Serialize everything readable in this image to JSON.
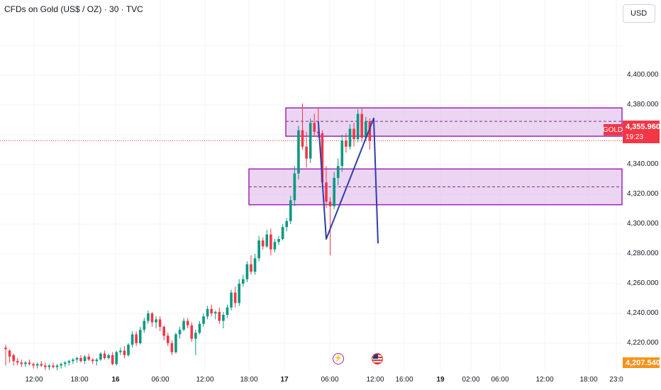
{
  "header": {
    "title": "CFDs on Gold (US$ / OZ) · 30 · TVC",
    "currency": "USD"
  },
  "price_axis": {
    "ticks": [
      "4,400.000",
      "4,380.000",
      "4,360.000",
      "4,340.000",
      "4,320.000",
      "4,300.000",
      "4,280.000",
      "4,260.000",
      "4,240.000",
      "4,220.000"
    ]
  },
  "time_axis": {
    "ticks": [
      {
        "label": "12:00",
        "bold": false
      },
      {
        "label": "18:00",
        "bold": false
      },
      {
        "label": "16",
        "bold": true
      },
      {
        "label": "06:00",
        "bold": false
      },
      {
        "label": "12:00",
        "bold": false
      },
      {
        "label": "18:00",
        "bold": false
      },
      {
        "label": "17",
        "bold": true
      },
      {
        "label": "06:00",
        "bold": false
      },
      {
        "label": "12:00",
        "bold": false
      },
      {
        "label": "16:00",
        "bold": false
      },
      {
        "label": "19",
        "bold": true
      },
      {
        "label": "02:00",
        "bold": false
      },
      {
        "label": "06:00",
        "bold": false
      },
      {
        "label": "12:00",
        "bold": false
      },
      {
        "label": "18:00",
        "bold": false
      },
      {
        "label": "23:0",
        "bold": false
      }
    ]
  },
  "symbol_tag": "GOLD",
  "current_price": "4,355.960",
  "countdown": "19:23",
  "last_price_tag": "4,207.540",
  "events": {
    "bolt": "bolt-icon",
    "flag": "us-flag-icon"
  },
  "colors": {
    "up": "#089981",
    "down": "#f23645",
    "zone_fill": "#e6c6ef",
    "zone_border": "#9c27b0",
    "pattern_line": "#2f3ea8",
    "price_line": "#f23645",
    "last_tag": "#f7931a"
  },
  "chart_data": {
    "type": "candlestick",
    "y_range": [
      4205,
      4425
    ],
    "candles": [
      [
        4217,
        4219,
        4205,
        4216
      ],
      [
        4215,
        4216,
        4207,
        4211
      ],
      [
        4212,
        4213,
        4205,
        4208
      ],
      [
        4208,
        4210,
        4205,
        4207
      ],
      [
        4207,
        4209,
        4204,
        4206
      ],
      [
        4206,
        4208,
        4204,
        4207
      ],
      [
        4207,
        4209,
        4205,
        4206
      ],
      [
        4206,
        4207,
        4203,
        4205
      ],
      [
        4205,
        4207,
        4203,
        4206
      ],
      [
        4206,
        4208,
        4204,
        4205
      ],
      [
        4205,
        4207,
        4202,
        4204
      ],
      [
        4204,
        4206,
        4202,
        4205
      ],
      [
        4205,
        4207,
        4203,
        4204
      ],
      [
        4204,
        4206,
        4202,
        4205
      ],
      [
        4205,
        4207,
        4203,
        4206
      ],
      [
        4206,
        4208,
        4204,
        4207
      ],
      [
        4207,
        4209,
        4205,
        4208
      ],
      [
        4208,
        4210,
        4206,
        4209
      ],
      [
        4209,
        4211,
        4207,
        4210
      ],
      [
        4210,
        4212,
        4207,
        4208
      ],
      [
        4208,
        4212,
        4206,
        4211
      ],
      [
        4211,
        4213,
        4208,
        4209
      ],
      [
        4209,
        4210,
        4206,
        4208
      ],
      [
        4208,
        4210,
        4205,
        4209
      ],
      [
        4209,
        4214,
        4208,
        4213
      ],
      [
        4213,
        4215,
        4209,
        4210
      ],
      [
        4210,
        4213,
        4209,
        4212
      ],
      [
        4212,
        4214,
        4205,
        4206
      ],
      [
        4206,
        4215,
        4205,
        4214
      ],
      [
        4214,
        4217,
        4212,
        4215
      ],
      [
        4215,
        4218,
        4210,
        4212
      ],
      [
        4212,
        4220,
        4211,
        4219
      ],
      [
        4219,
        4228,
        4217,
        4226
      ],
      [
        4226,
        4228,
        4218,
        4220
      ],
      [
        4220,
        4231,
        4219,
        4229
      ],
      [
        4229,
        4237,
        4227,
        4235
      ],
      [
        4235,
        4242,
        4233,
        4240
      ],
      [
        4240,
        4241,
        4231,
        4234
      ],
      [
        4234,
        4238,
        4230,
        4236
      ],
      [
        4236,
        4238,
        4228,
        4231
      ],
      [
        4231,
        4232,
        4222,
        4225
      ],
      [
        4225,
        4227,
        4218,
        4220
      ],
      [
        4220,
        4222,
        4212,
        4214
      ],
      [
        4214,
        4227,
        4213,
        4226
      ],
      [
        4226,
        4231,
        4223,
        4229
      ],
      [
        4229,
        4237,
        4228,
        4235
      ],
      [
        4235,
        4237,
        4230,
        4232
      ],
      [
        4232,
        4234,
        4221,
        4223
      ],
      [
        4223,
        4229,
        4212,
        4227
      ],
      [
        4227,
        4235,
        4226,
        4233
      ],
      [
        4233,
        4240,
        4231,
        4238
      ],
      [
        4238,
        4245,
        4236,
        4243
      ],
      [
        4243,
        4246,
        4238,
        4240
      ],
      [
        4240,
        4242,
        4236,
        4241
      ],
      [
        4241,
        4244,
        4233,
        4235
      ],
      [
        4235,
        4241,
        4230,
        4239
      ],
      [
        4239,
        4246,
        4237,
        4244
      ],
      [
        4244,
        4256,
        4242,
        4254
      ],
      [
        4254,
        4258,
        4244,
        4247
      ],
      [
        4247,
        4263,
        4245,
        4260
      ],
      [
        4260,
        4266,
        4258,
        4263
      ],
      [
        4263,
        4275,
        4261,
        4273
      ],
      [
        4273,
        4279,
        4266,
        4268
      ],
      [
        4268,
        4280,
        4266,
        4277
      ],
      [
        4277,
        4292,
        4275,
        4289
      ],
      [
        4289,
        4291,
        4283,
        4285
      ],
      [
        4285,
        4296,
        4284,
        4293
      ],
      [
        4293,
        4297,
        4279,
        4283
      ],
      [
        4283,
        4290,
        4281,
        4288
      ],
      [
        4288,
        4292,
        4286,
        4290
      ],
      [
        4290,
        4300,
        4289,
        4298
      ],
      [
        4298,
        4304,
        4295,
        4302
      ],
      [
        4302,
        4319,
        4300,
        4316
      ],
      [
        4316,
        4339,
        4312,
        4334
      ],
      [
        4334,
        4366,
        4330,
        4363
      ],
      [
        4363,
        4381,
        4350,
        4352
      ],
      [
        4352,
        4362,
        4338,
        4344
      ],
      [
        4344,
        4371,
        4341,
        4368
      ],
      [
        4368,
        4374,
        4359,
        4362
      ],
      [
        4362,
        4378,
        4358,
        4361
      ],
      [
        4361,
        4363,
        4324,
        4328
      ],
      [
        4328,
        4339,
        4311,
        4315
      ],
      [
        4315,
        4318,
        4279,
        4312
      ],
      [
        4312,
        4335,
        4310,
        4331
      ],
      [
        4331,
        4344,
        4326,
        4339
      ],
      [
        4339,
        4360,
        4335,
        4356
      ],
      [
        4356,
        4361,
        4348,
        4352
      ],
      [
        4352,
        4367,
        4350,
        4364
      ],
      [
        4364,
        4368,
        4352,
        4357
      ],
      [
        4357,
        4377,
        4355,
        4374
      ],
      [
        4374,
        4378,
        4355,
        4358
      ],
      [
        4358,
        4372,
        4356,
        4369
      ],
      [
        4369,
        4371,
        4350,
        4356
      ]
    ],
    "zones": [
      {
        "top": 4378,
        "bottom": 4359,
        "mid": 4369
      },
      {
        "top": 4337,
        "bottom": 4313,
        "mid": 4325
      }
    ],
    "pattern": [
      {
        "x": "candle-79",
        "y": 4369
      },
      {
        "x": "candle-81",
        "y": 4290
      },
      {
        "x": "candle-93",
        "y": 4371
      },
      {
        "x": "12:00",
        "y": 4287
      }
    ],
    "current_price": 4355.96
  }
}
